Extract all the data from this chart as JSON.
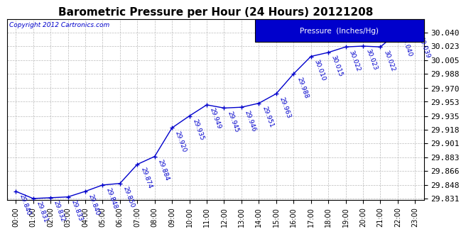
{
  "title": "Barometric Pressure per Hour (24 Hours) 20121208",
  "copyright": "Copyright 2012 Cartronics.com",
  "legend_label": "Pressure  (Inches/Hg)",
  "hours": [
    0,
    1,
    2,
    3,
    4,
    5,
    6,
    7,
    8,
    9,
    10,
    11,
    12,
    13,
    14,
    15,
    16,
    17,
    18,
    19,
    20,
    21,
    22,
    23
  ],
  "hour_labels": [
    "00:00",
    "01:00",
    "02:00",
    "03:00",
    "04:00",
    "05:00",
    "06:00",
    "07:00",
    "08:00",
    "09:00",
    "10:00",
    "11:00",
    "12:00",
    "13:00",
    "14:00",
    "15:00",
    "16:00",
    "17:00",
    "18:00",
    "19:00",
    "20:00",
    "21:00",
    "22:00",
    "23:00"
  ],
  "pressure": [
    29.84,
    29.831,
    29.832,
    29.833,
    29.84,
    29.848,
    29.85,
    29.874,
    29.884,
    29.92,
    29.935,
    29.949,
    29.945,
    29.946,
    29.951,
    29.963,
    29.988,
    30.01,
    30.015,
    30.022,
    30.023,
    30.022,
    30.04,
    30.039
  ],
  "ylim_min": 29.831,
  "ylim_max": 30.04,
  "yticks": [
    29.831,
    29.848,
    29.866,
    29.883,
    29.901,
    29.918,
    29.935,
    29.953,
    29.97,
    29.988,
    30.005,
    30.023,
    30.04
  ],
  "line_color": "#0000CC",
  "marker_color": "#0000CC",
  "bg_color": "#FFFFFF",
  "grid_color": "#AAAAAA",
  "title_color": "#000000",
  "label_color": "#0000CC",
  "copyright_color": "#0000CC",
  "legend_bg": "#0000CC",
  "legend_text_color": "#FFFFFF",
  "annotation_rotation": -70,
  "annotation_fontsize": 6.5,
  "xlabel_fontsize": 7,
  "ylabel_fontsize": 8,
  "title_fontsize": 11
}
